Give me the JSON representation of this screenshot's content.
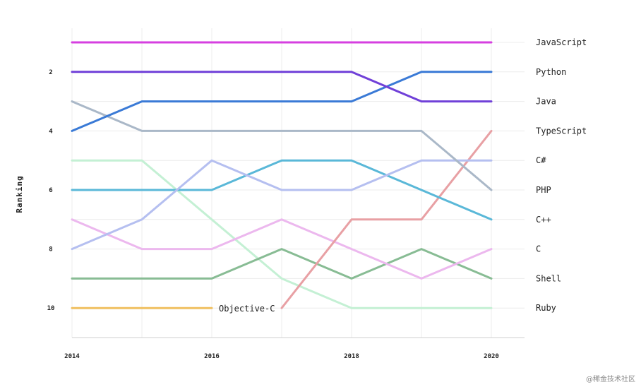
{
  "chart_data": {
    "type": "line",
    "x": [
      2014,
      2015,
      2016,
      2017,
      2018,
      2019,
      2020
    ],
    "x_ticks": [
      "2014",
      "2016",
      "2018",
      "2020"
    ],
    "y_ticks": [
      "2",
      "4",
      "6",
      "8",
      "10"
    ],
    "ylabel": "Ranking",
    "ylim": [
      11,
      1
    ],
    "y_inverted": true,
    "grid": true,
    "legend": "right-end labels",
    "series": [
      {
        "name": "JavaScript",
        "color": "#d63fe0",
        "values": [
          1,
          1,
          1,
          1,
          1,
          1,
          1
        ]
      },
      {
        "name": "Python",
        "color": "#7040d8",
        "values": [
          2,
          2,
          2,
          2,
          2,
          3,
          3
        ]
      },
      {
        "name": "Java",
        "color": "#3a7ad6",
        "values": [
          4,
          3,
          3,
          3,
          3,
          2,
          2
        ]
      },
      {
        "name": "TypeScript",
        "color": "#aab8c8",
        "values": [
          3,
          4,
          4,
          4,
          4,
          4,
          6
        ]
      },
      {
        "name": "C#",
        "color": "#b5bff0",
        "values": [
          8,
          7,
          5,
          6,
          6,
          5,
          5
        ]
      },
      {
        "name": "PHP",
        "color": "#5ab8d8",
        "values": [
          6,
          6,
          6,
          5,
          5,
          6,
          7
        ]
      },
      {
        "name": "C++",
        "color": "#e8a0a4",
        "values": [
          null,
          null,
          null,
          10,
          7,
          7,
          4
        ]
      },
      {
        "name": "C",
        "color": "#ecb8ee",
        "values": [
          7,
          8,
          8,
          7,
          8,
          9,
          8
        ]
      },
      {
        "name": "Shell",
        "color": "#88bc94",
        "values": [
          9,
          9,
          9,
          8,
          9,
          8,
          9
        ]
      },
      {
        "name": "Ruby",
        "color": "#c4f0d4",
        "values": [
          5,
          5,
          7,
          9,
          10,
          10,
          10
        ]
      },
      {
        "name": "Objective-C",
        "color": "#f0c060",
        "values": [
          10,
          10,
          10,
          null,
          null,
          null,
          null
        ]
      }
    ],
    "right_labels": [
      "JavaScript",
      "Python",
      "Java",
      "TypeScript",
      "C#",
      "PHP",
      "C++",
      "C",
      "Shell",
      "Ruby"
    ],
    "annotations": [
      {
        "text": "Objective-C",
        "series": "Objective-C"
      }
    ]
  },
  "watermark": "@稀金技术社区"
}
